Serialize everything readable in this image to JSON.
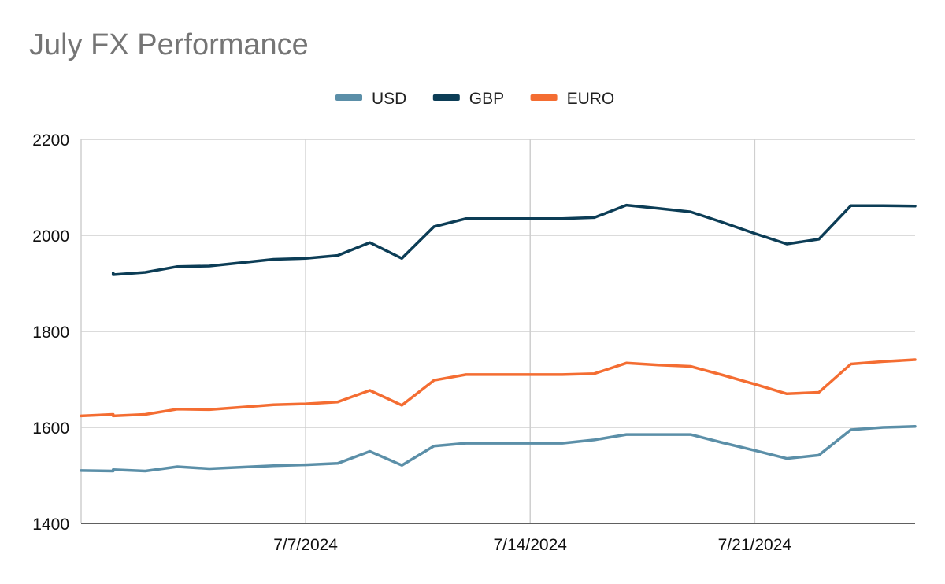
{
  "chart_data": {
    "type": "line",
    "title": "July FX Performance",
    "xlabel": "",
    "ylabel": "",
    "xlim": [
      "2024-06-30",
      "2024-07-26"
    ],
    "ylim": [
      1400,
      2200
    ],
    "yticks": [
      1400,
      1600,
      1800,
      2000,
      2200
    ],
    "xticks": [
      {
        "date": "2024-07-07",
        "label": "7/7/2024"
      },
      {
        "date": "2024-07-14",
        "label": "7/14/2024"
      },
      {
        "date": "2024-07-21",
        "label": "7/21/2024"
      }
    ],
    "grid": true,
    "legend": "top",
    "series": [
      {
        "name": "USD",
        "color": "#5b8fa8",
        "points": [
          [
            "2024-06-30",
            1510
          ],
          [
            "2024-07-01",
            1509
          ],
          [
            "2024-07-01",
            1512
          ],
          [
            "2024-07-02",
            1509
          ],
          [
            "2024-07-03",
            1518
          ],
          [
            "2024-07-04",
            1514
          ],
          [
            "2024-07-05",
            1517
          ],
          [
            "2024-07-06",
            1520
          ],
          [
            "2024-07-07",
            1522
          ],
          [
            "2024-07-08",
            1525
          ],
          [
            "2024-07-09",
            1550
          ],
          [
            "2024-07-10",
            1521
          ],
          [
            "2024-07-11",
            1561
          ],
          [
            "2024-07-12",
            1567
          ],
          [
            "2024-07-13",
            1567
          ],
          [
            "2024-07-14",
            1567
          ],
          [
            "2024-07-15",
            1567
          ],
          [
            "2024-07-16",
            1574
          ],
          [
            "2024-07-17",
            1585
          ],
          [
            "2024-07-18",
            1585
          ],
          [
            "2024-07-19",
            1585
          ],
          [
            "2024-07-20",
            1568
          ],
          [
            "2024-07-21",
            1552
          ],
          [
            "2024-07-22",
            1535
          ],
          [
            "2024-07-23",
            1542
          ],
          [
            "2024-07-24",
            1595
          ],
          [
            "2024-07-25",
            1600
          ],
          [
            "2024-07-26",
            1602
          ]
        ]
      },
      {
        "name": "GBP",
        "color": "#0c3d56",
        "points": [
          [
            "2024-07-01",
            1922
          ],
          [
            "2024-07-01",
            1918
          ],
          [
            "2024-07-02",
            1923
          ],
          [
            "2024-07-03",
            1935
          ],
          [
            "2024-07-04",
            1936
          ],
          [
            "2024-07-05",
            1943
          ],
          [
            "2024-07-06",
            1950
          ],
          [
            "2024-07-07",
            1952
          ],
          [
            "2024-07-08",
            1958
          ],
          [
            "2024-07-09",
            1985
          ],
          [
            "2024-07-10",
            1952
          ],
          [
            "2024-07-11",
            2018
          ],
          [
            "2024-07-12",
            2035
          ],
          [
            "2024-07-13",
            2035
          ],
          [
            "2024-07-14",
            2035
          ],
          [
            "2024-07-15",
            2035
          ],
          [
            "2024-07-16",
            2037
          ],
          [
            "2024-07-17",
            2063
          ],
          [
            "2024-07-18",
            2056
          ],
          [
            "2024-07-19",
            2049
          ],
          [
            "2024-07-20",
            2027
          ],
          [
            "2024-07-21",
            2004
          ],
          [
            "2024-07-22",
            1982
          ],
          [
            "2024-07-23",
            1992
          ],
          [
            "2024-07-24",
            2062
          ],
          [
            "2024-07-25",
            2062
          ],
          [
            "2024-07-26",
            2061
          ]
        ]
      },
      {
        "name": "EURO",
        "color": "#f46d32",
        "points": [
          [
            "2024-06-30",
            1624
          ],
          [
            "2024-07-01",
            1627
          ],
          [
            "2024-07-01",
            1624
          ],
          [
            "2024-07-02",
            1627
          ],
          [
            "2024-07-03",
            1638
          ],
          [
            "2024-07-04",
            1637
          ],
          [
            "2024-07-05",
            1642
          ],
          [
            "2024-07-06",
            1647
          ],
          [
            "2024-07-07",
            1649
          ],
          [
            "2024-07-08",
            1653
          ],
          [
            "2024-07-09",
            1677
          ],
          [
            "2024-07-10",
            1646
          ],
          [
            "2024-07-11",
            1698
          ],
          [
            "2024-07-12",
            1710
          ],
          [
            "2024-07-13",
            1710
          ],
          [
            "2024-07-14",
            1710
          ],
          [
            "2024-07-15",
            1710
          ],
          [
            "2024-07-16",
            1712
          ],
          [
            "2024-07-17",
            1734
          ],
          [
            "2024-07-18",
            1730
          ],
          [
            "2024-07-19",
            1727
          ],
          [
            "2024-07-20",
            1709
          ],
          [
            "2024-07-21",
            1690
          ],
          [
            "2024-07-22",
            1670
          ],
          [
            "2024-07-23",
            1673
          ],
          [
            "2024-07-24",
            1732
          ],
          [
            "2024-07-25",
            1737
          ],
          [
            "2024-07-26",
            1741
          ]
        ]
      }
    ]
  }
}
